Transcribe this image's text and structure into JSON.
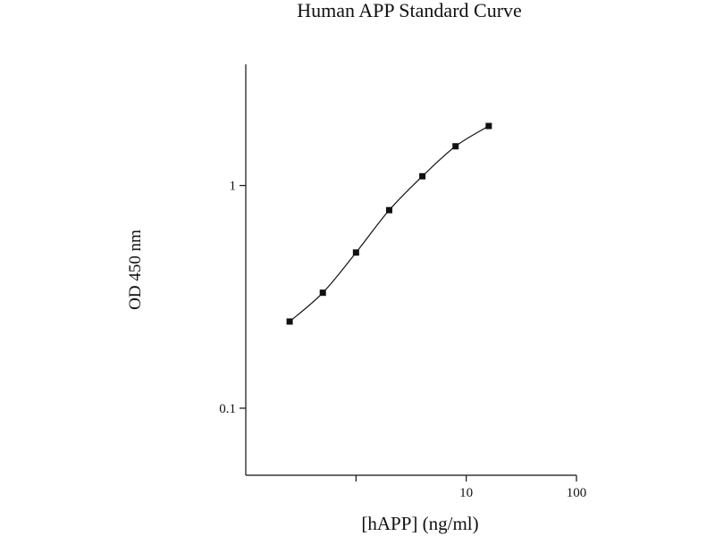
{
  "chart_data": {
    "type": "scatter",
    "title": "Human APP Standard Curve",
    "xlabel": "[hAPP] (ng/ml)",
    "ylabel": "OD 450 nm",
    "x_scale": "log",
    "y_scale": "log",
    "xlim": [
      0.1,
      100
    ],
    "ylim": [
      0.05,
      3.5
    ],
    "x_ticks": [
      {
        "value": 1,
        "label": ""
      },
      {
        "value": 10,
        "label": "10"
      },
      {
        "value": 100,
        "label": "100"
      }
    ],
    "y_ticks": [
      {
        "value": 0.1,
        "label": "0.1"
      },
      {
        "value": 1,
        "label": "1"
      }
    ],
    "grid": false,
    "legend": "none",
    "fit_line": "smooth curve",
    "series": [
      {
        "marker": "square",
        "color": "#111111",
        "x": [
          0.25,
          0.5,
          1,
          2,
          4,
          8,
          16
        ],
        "y": [
          0.245,
          0.33,
          0.5,
          0.775,
          1.1,
          1.5,
          1.85
        ]
      }
    ]
  }
}
